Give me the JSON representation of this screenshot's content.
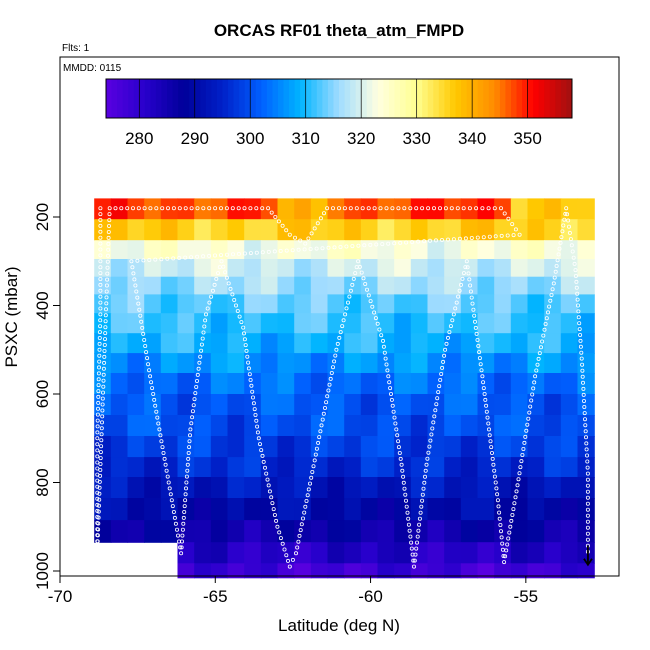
{
  "chart_data": {
    "type": "heatmap",
    "title": "ORCAS RF01 theta_atm_FMPD",
    "corner_label_top": "Flts: 1",
    "corner_label_inner": "MMDD: 0115",
    "xlabel": "Latitude (deg N)",
    "ylabel": "PSXC (mbar)",
    "xlim": [
      -70,
      -52
    ],
    "ylim": [
      1010,
      100
    ],
    "x_ticks": [
      -70,
      -65,
      -60,
      -55
    ],
    "y_ticks": [
      200,
      400,
      600,
      800,
      1000
    ],
    "colorbar": {
      "range": [
        274,
        358
      ],
      "ticks": [
        280,
        290,
        300,
        310,
        320,
        330,
        340,
        350
      ],
      "colors": [
        "#5a00e0",
        "#2800cc",
        "#00009a",
        "#0020c8",
        "#0060ff",
        "#00b4ff",
        "#a0dcff",
        "#ffffe0",
        "#ffff90",
        "#ffc800",
        "#ff8c00",
        "#ff0000",
        "#a01010"
      ]
    },
    "pressure_levels": [
      180,
      230,
      275,
      315,
      355,
      395,
      440,
      485,
      530,
      575,
      625,
      670,
      720,
      765,
      810,
      860,
      910,
      960,
      1005
    ],
    "theta_by_level": [
      348,
      336,
      323,
      319,
      316,
      313,
      311,
      309,
      306,
      303,
      301,
      300,
      298,
      296,
      293,
      290,
      286,
      282,
      278
    ],
    "data_extent_lat": [
      -68.9,
      -52.8
    ],
    "flight_track": [
      {
        "lat": -68.7,
        "p": 180
      },
      {
        "lat": -68.7,
        "p": 420
      },
      {
        "lat": -68.8,
        "p": 700
      },
      {
        "lat": -68.8,
        "p": 960
      },
      {
        "lat": -68.4,
        "p": 180
      },
      {
        "lat": -66.9,
        "p": 180
      },
      {
        "lat": -63.3,
        "p": 180
      },
      {
        "lat": -62.6,
        "p": 240
      },
      {
        "lat": -62.1,
        "p": 260
      },
      {
        "lat": -61.4,
        "p": 180
      },
      {
        "lat": -57.0,
        "p": 180
      },
      {
        "lat": -55.8,
        "p": 180
      },
      {
        "lat": -55.2,
        "p": 240
      },
      {
        "lat": -67.7,
        "p": 300
      },
      {
        "lat": -67.1,
        "p": 560
      },
      {
        "lat": -66.5,
        "p": 800
      },
      {
        "lat": -66.1,
        "p": 960
      },
      {
        "lat": -65.8,
        "p": 680
      },
      {
        "lat": -65.3,
        "p": 420
      },
      {
        "lat": -64.8,
        "p": 300
      },
      {
        "lat": -64.1,
        "p": 450
      },
      {
        "lat": -63.6,
        "p": 700
      },
      {
        "lat": -63.0,
        "p": 900
      },
      {
        "lat": -62.6,
        "p": 990
      },
      {
        "lat": -62.4,
        "p": 960
      },
      {
        "lat": -61.8,
        "p": 750
      },
      {
        "lat": -61.1,
        "p": 500
      },
      {
        "lat": -60.4,
        "p": 300
      },
      {
        "lat": -59.6,
        "p": 480
      },
      {
        "lat": -59.0,
        "p": 760
      },
      {
        "lat": -58.6,
        "p": 990
      },
      {
        "lat": -58.2,
        "p": 760
      },
      {
        "lat": -57.6,
        "p": 500
      },
      {
        "lat": -56.9,
        "p": 300
      },
      {
        "lat": -56.4,
        "p": 560
      },
      {
        "lat": -55.9,
        "p": 840
      },
      {
        "lat": -55.7,
        "p": 980
      },
      {
        "lat": -55.3,
        "p": 820
      },
      {
        "lat": -54.7,
        "p": 560
      },
      {
        "lat": -54.1,
        "p": 350
      },
      {
        "lat": -53.7,
        "p": 180
      },
      {
        "lat": -53.4,
        "p": 320
      },
      {
        "lat": -53.2,
        "p": 520
      },
      {
        "lat": -53.0,
        "p": 780
      },
      {
        "lat": -53.0,
        "p": 970
      }
    ]
  }
}
